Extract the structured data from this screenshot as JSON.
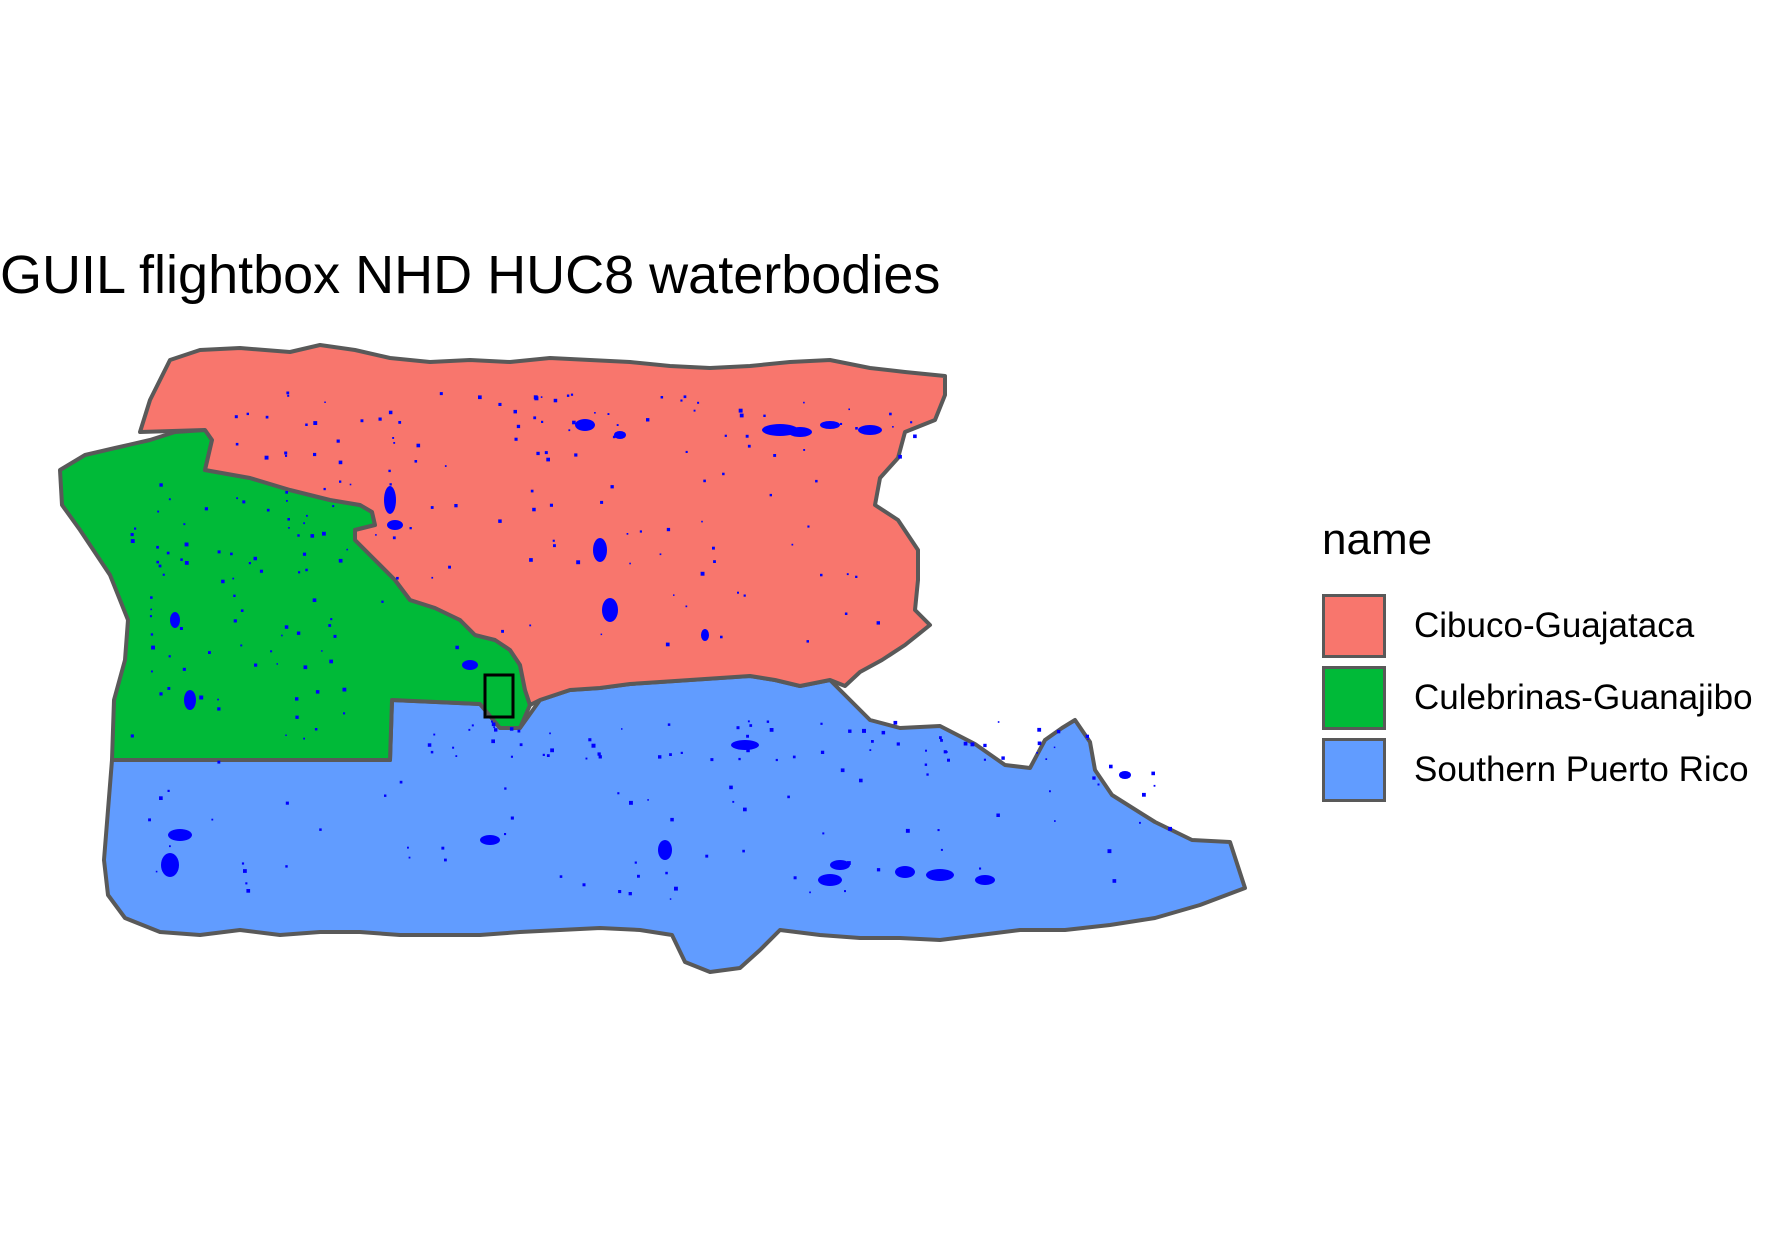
{
  "title": "GUIL flightbox NHD HUC8 waterbodies",
  "legend": {
    "title": "name",
    "items": [
      {
        "label": "Cibuco-Guajataca",
        "color": "#F8766D",
        "icon": "fill-swatch"
      },
      {
        "label": "Culebrinas-Guanajibo",
        "color": "#00BA38",
        "icon": "fill-swatch"
      },
      {
        "label": "Southern Puerto Rico",
        "color": "#619CFF",
        "icon": "fill-swatch"
      }
    ]
  },
  "colors": {
    "boundary": "#595959",
    "waterbody": "#0000FF",
    "flightbox_outline": "#000000",
    "background": "#FFFFFF"
  },
  "map_layers": {
    "regions": [
      "Cibuco-Guajataca",
      "Culebrinas-Guanajibo",
      "Southern Puerto Rico"
    ],
    "waterbodies": "NHD waterbodies",
    "flightbox": "GUIL flightbox"
  }
}
